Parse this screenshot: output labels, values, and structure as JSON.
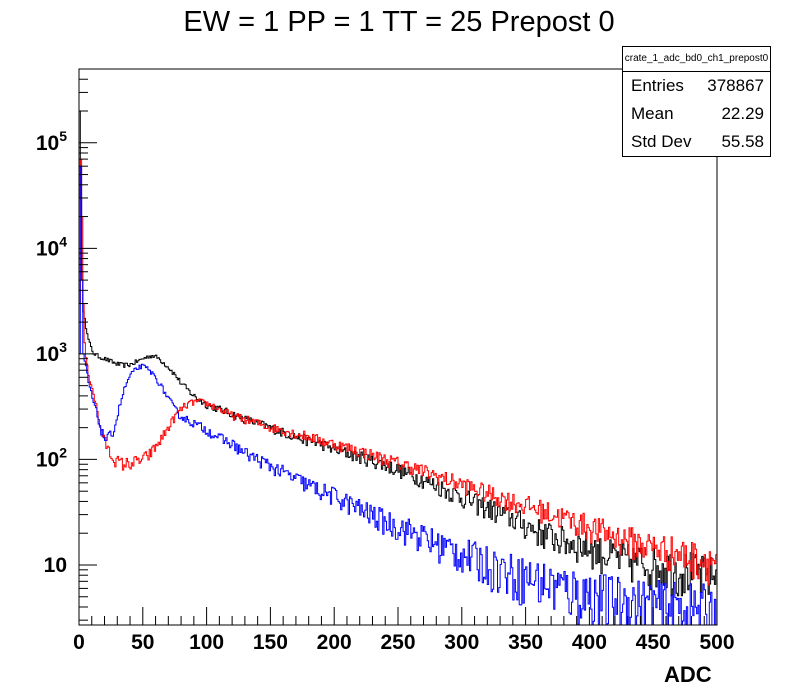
{
  "title": "EW = 1 PP = 1 TT = 25 Prepost 0",
  "stats": {
    "name": "crate_1_adc_bd0_ch1_prepost0",
    "rows": [
      {
        "label": "Entries",
        "value": "378867"
      },
      {
        "label": "Mean",
        "value": "22.29"
      },
      {
        "label": "Std Dev",
        "value": "55.58"
      }
    ]
  },
  "chart_data": {
    "type": "line",
    "title": "EW = 1 PP = 1 TT = 25 Prepost 0",
    "xlabel": "ADC",
    "ylabel": "",
    "xlim": [
      0,
      500
    ],
    "ylim": [
      2.7,
      500000
    ],
    "yscale": "log",
    "grid": false,
    "legend": "none",
    "x_tick_labels": [
      "0",
      "50",
      "100",
      "150",
      "200",
      "250",
      "300",
      "350",
      "400",
      "450",
      "500"
    ],
    "y_tick_labels": [
      {
        "base": "10",
        "exp": "5",
        "value": 100000
      },
      {
        "base": "10",
        "exp": "4",
        "value": 10000
      },
      {
        "base": "10",
        "exp": "3",
        "value": 1000
      },
      {
        "base": "10",
        "exp": "2",
        "value": 100
      },
      {
        "base": "10",
        "exp": "",
        "value": 10
      }
    ],
    "series": [
      {
        "color": "#000000",
        "x": [
          0,
          1,
          2,
          4,
          6,
          8,
          10,
          12,
          15,
          20,
          25,
          30,
          35,
          40,
          45,
          50,
          55,
          58,
          62,
          65,
          70,
          75,
          80,
          90,
          100,
          110,
          120,
          130,
          140,
          150,
          160,
          170,
          180,
          190,
          200,
          210,
          220,
          230,
          240,
          250,
          260,
          270,
          280,
          290,
          300,
          310,
          320,
          330,
          340,
          350,
          360,
          370,
          380,
          390,
          400,
          410,
          420,
          430,
          440,
          450,
          460,
          470,
          480,
          490,
          500
        ],
        "y": [
          200000,
          30000,
          6000,
          2500,
          1600,
          1300,
          1100,
          1000,
          950,
          900,
          850,
          800,
          780,
          790,
          840,
          900,
          950,
          960,
          920,
          850,
          750,
          640,
          530,
          400,
          330,
          300,
          270,
          240,
          220,
          200,
          180,
          165,
          150,
          140,
          125,
          115,
          105,
          97,
          88,
          80,
          72,
          64,
          57,
          50,
          44,
          39,
          35,
          31,
          28,
          24,
          21,
          19,
          17,
          16,
          15,
          13,
          12,
          11,
          11,
          10,
          10,
          9,
          9,
          8,
          8
        ]
      },
      {
        "color": "#ff0000",
        "x": [
          0,
          1,
          2,
          3,
          4,
          6,
          8,
          10,
          12,
          14,
          16,
          18,
          20,
          25,
          30,
          35,
          40,
          45,
          50,
          55,
          60,
          65,
          70,
          75,
          80,
          85,
          90,
          95,
          100,
          105,
          110,
          120,
          130,
          140,
          150,
          160,
          170,
          180,
          190,
          200,
          220,
          240,
          260,
          280,
          300,
          320,
          340,
          360,
          380,
          400,
          420,
          440,
          460,
          480,
          500
        ],
        "y": [
          3000,
          70000,
          20000,
          3000,
          1500,
          800,
          600,
          500,
          400,
          300,
          220,
          180,
          150,
          110,
          95,
          90,
          92,
          95,
          100,
          110,
          130,
          160,
          200,
          250,
          300,
          330,
          350,
          350,
          340,
          320,
          300,
          260,
          240,
          220,
          200,
          190,
          175,
          165,
          150,
          140,
          120,
          100,
          85,
          70,
          58,
          48,
          40,
          34,
          28,
          23,
          19,
          16,
          14,
          12,
          11
        ]
      },
      {
        "color": "#0000ff",
        "x": [
          0,
          1,
          2,
          3,
          4,
          6,
          8,
          10,
          12,
          14,
          16,
          18,
          20,
          22,
          25,
          28,
          30,
          33,
          36,
          40,
          45,
          48,
          50,
          53,
          56,
          60,
          65,
          70,
          75,
          80,
          90,
          100,
          110,
          120,
          130,
          140,
          150,
          160,
          170,
          180,
          190,
          200,
          220,
          240,
          260,
          280,
          300,
          320,
          340,
          360,
          380,
          400,
          420,
          440,
          460,
          480,
          500
        ],
        "y": [
          1000,
          60000,
          5000,
          1000,
          900,
          700,
          500,
          400,
          330,
          270,
          220,
          180,
          160,
          155,
          170,
          200,
          260,
          360,
          480,
          620,
          720,
          760,
          760,
          730,
          680,
          600,
          480,
          380,
          300,
          255,
          220,
          190,
          160,
          140,
          115,
          100,
          87,
          75,
          65,
          57,
          50,
          45,
          34,
          26,
          21,
          16,
          13,
          10.5,
          8.5,
          7.3,
          6.2,
          5.4,
          4.8,
          4.4,
          4.1,
          3.9,
          3.7
        ]
      }
    ]
  }
}
